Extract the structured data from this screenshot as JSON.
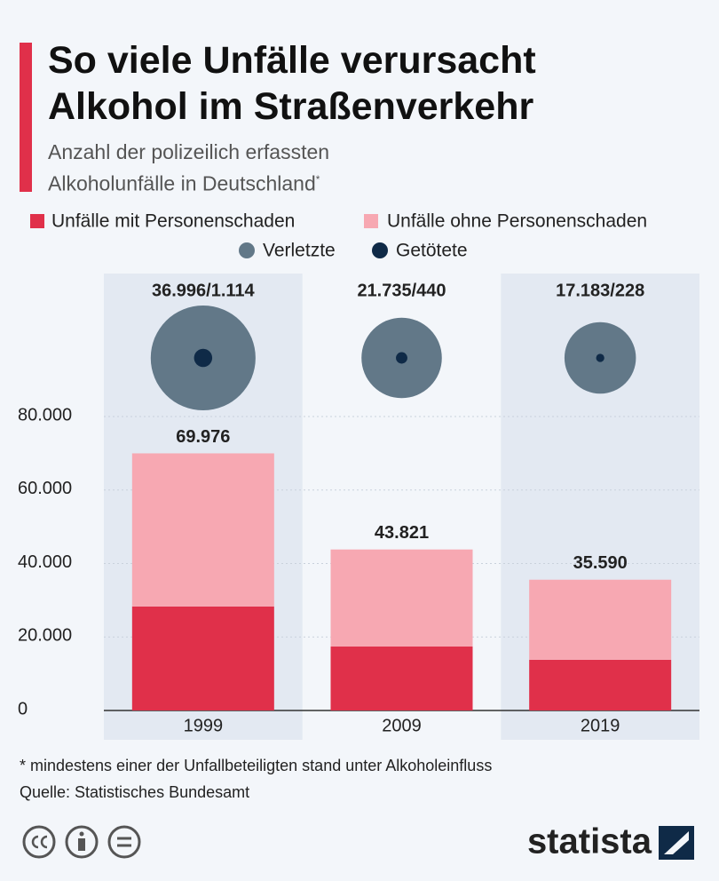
{
  "chart_data": {
    "type": "bar",
    "stacked": true,
    "title": "So viele Unfälle verursacht Alkohol im Straßenverkehr",
    "subtitle": "Anzahl der polizeilich erfassten Alkoholunfälle in Deutschland",
    "subtitle_marker": "*",
    "categories": [
      "1999",
      "2009",
      "2019"
    ],
    "series": [
      {
        "name": "Unfälle mit Personenschaden",
        "color": "#e0304a",
        "values": [
          28300,
          17400,
          13800
        ]
      },
      {
        "name": "Unfälle ohne Personenschaden",
        "color": "#f7a8b2",
        "values": [
          41676,
          26421,
          21790
        ]
      }
    ],
    "totals": {
      "values": [
        69976,
        43821,
        35590
      ],
      "value_labels": [
        "69.976",
        "43.821",
        "35.590"
      ]
    },
    "bubbles": {
      "series": [
        {
          "name": "Verletzte",
          "color": "#627888",
          "values": [
            36996,
            21735,
            17183
          ]
        },
        {
          "name": "Getötete",
          "color": "#0f2a47",
          "values": [
            1114,
            440,
            228
          ]
        }
      ],
      "value_labels": [
        "36.996/1.114",
        "21.735/440",
        "17.183/228"
      ]
    },
    "ylim": [
      0,
      80000
    ],
    "yticks": [
      0,
      {
        "value": 20000,
        "label": "20.000"
      },
      {
        "value": 40000,
        "label": "40.000"
      },
      {
        "value": 60000,
        "label": "60.000"
      },
      {
        "value": 80000,
        "label": "80.000"
      }
    ],
    "grid": true,
    "footnote": "* mindestens einer der Unfallbeteiligten stand unter Alkoholeinfluss",
    "source": "Quelle: Statistisches Bundesamt",
    "brand": "statista"
  }
}
